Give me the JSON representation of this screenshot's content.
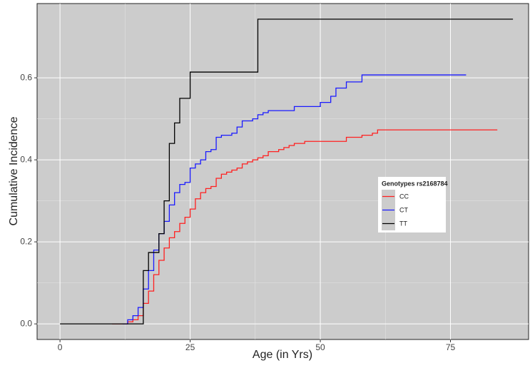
{
  "chart_data": {
    "type": "step",
    "x_label": "Age (in Yrs)",
    "y_label": "Cumulative Incidence",
    "xlim": [
      -4.4,
      90
    ],
    "ylim": [
      -0.038,
      0.781
    ],
    "xticks": [
      0,
      25,
      50,
      75
    ],
    "yticks": [
      {
        "value": 0,
        "label": "0.0"
      },
      0.2,
      0.4,
      0.6
    ],
    "grid": true,
    "legend_title": "Genotypes rs2168784",
    "legend_position": "right",
    "series": [
      {
        "name": "CC",
        "color": "#ff2020",
        "x": [
          10,
          13,
          14,
          15,
          16,
          17,
          18,
          19,
          20,
          21,
          22,
          23,
          24,
          25,
          26,
          27,
          28,
          29,
          30,
          31,
          32,
          33,
          34,
          35,
          36,
          37,
          38,
          39,
          40,
          42,
          43,
          44,
          45,
          47,
          55,
          58,
          60,
          61,
          84
        ],
        "values": [
          0,
          0.005,
          0.01,
          0.02,
          0.05,
          0.08,
          0.12,
          0.155,
          0.185,
          0.21,
          0.225,
          0.245,
          0.26,
          0.28,
          0.305,
          0.32,
          0.33,
          0.335,
          0.355,
          0.365,
          0.37,
          0.375,
          0.38,
          0.39,
          0.395,
          0.4,
          0.405,
          0.41,
          0.42,
          0.425,
          0.43,
          0.435,
          0.44,
          0.445,
          0.455,
          0.46,
          0.465,
          0.473,
          0.473
        ]
      },
      {
        "name": "CT",
        "color": "#1a1aff",
        "x": [
          12,
          13,
          14,
          15,
          16,
          17,
          18,
          19,
          20,
          21,
          22,
          23,
          24,
          25,
          26,
          27,
          28,
          29,
          30,
          31,
          33,
          34,
          35,
          37,
          38,
          39,
          40,
          45,
          50,
          52,
          53,
          55,
          58,
          78
        ],
        "values": [
          0,
          0.01,
          0.02,
          0.04,
          0.085,
          0.13,
          0.18,
          0.22,
          0.25,
          0.29,
          0.32,
          0.34,
          0.345,
          0.38,
          0.39,
          0.4,
          0.42,
          0.425,
          0.455,
          0.46,
          0.465,
          0.48,
          0.495,
          0.5,
          0.51,
          0.515,
          0.52,
          0.53,
          0.54,
          0.555,
          0.575,
          0.59,
          0.607,
          0.607
        ]
      },
      {
        "name": "TT",
        "color": "#000000",
        "x": [
          0,
          16,
          17,
          19,
          20,
          21,
          22,
          23,
          25,
          38,
          87
        ],
        "values": [
          0,
          0.13,
          0.174,
          0.22,
          0.3,
          0.44,
          0.49,
          0.55,
          0.614,
          0.743,
          0.743
        ]
      }
    ]
  }
}
